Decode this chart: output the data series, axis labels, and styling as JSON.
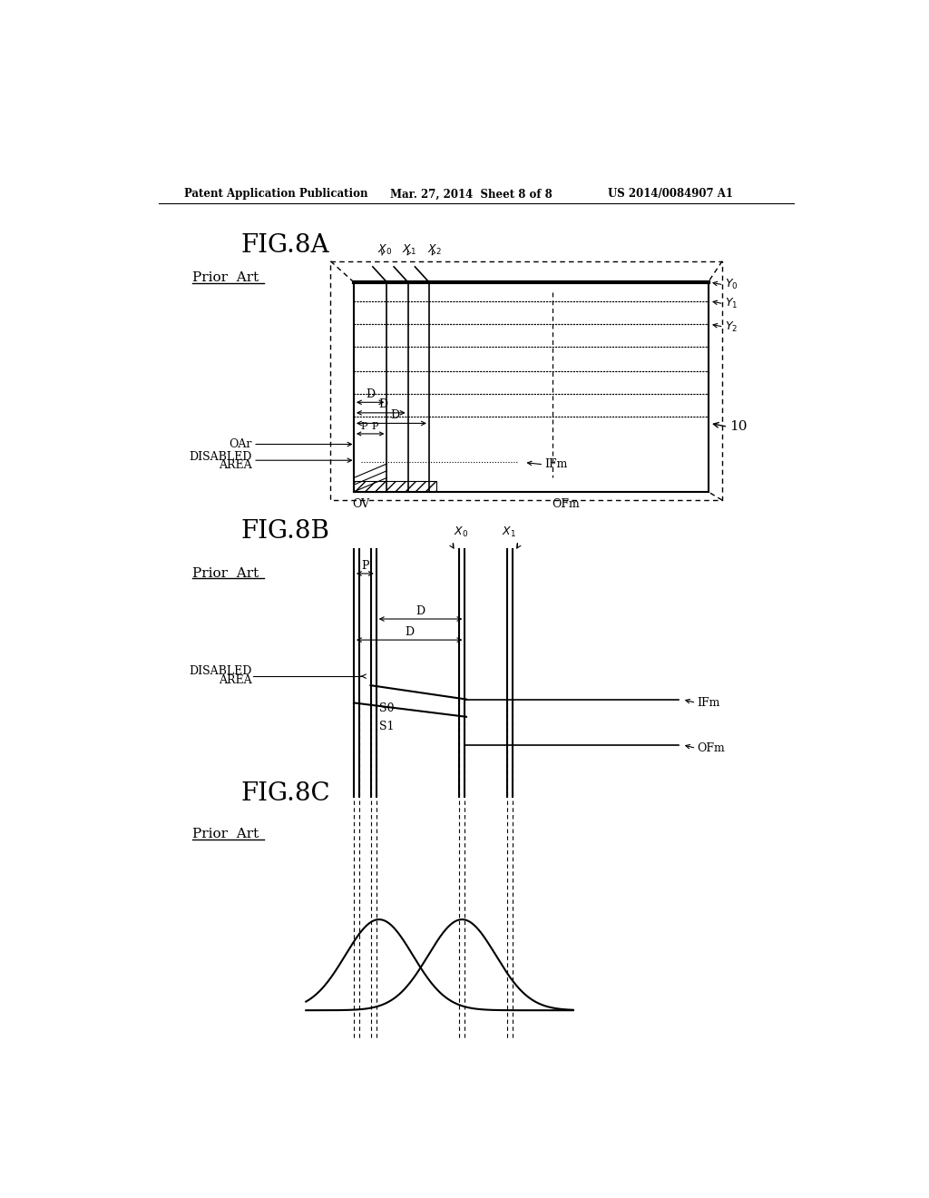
{
  "bg_color": "#ffffff",
  "header_left": "Patent Application Publication",
  "header_mid": "Mar. 27, 2014  Sheet 8 of 8",
  "header_right": "US 2014/0084907 A1",
  "fig8a_title": "FIG.8A",
  "fig8b_title": "FIG.8B",
  "fig8c_title": "FIG.8C",
  "prior_art": "Prior  Art",
  "label_10": "10",
  "label_OAr": "OAr",
  "label_DISABLED": "DISABLED",
  "label_AREA": "AREA",
  "label_IFm": "IFm",
  "label_OFm": "OFm",
  "label_OV": "OV",
  "label_S0": "S0",
  "label_S1": "S1",
  "label_D": "D",
  "label_P": "P"
}
